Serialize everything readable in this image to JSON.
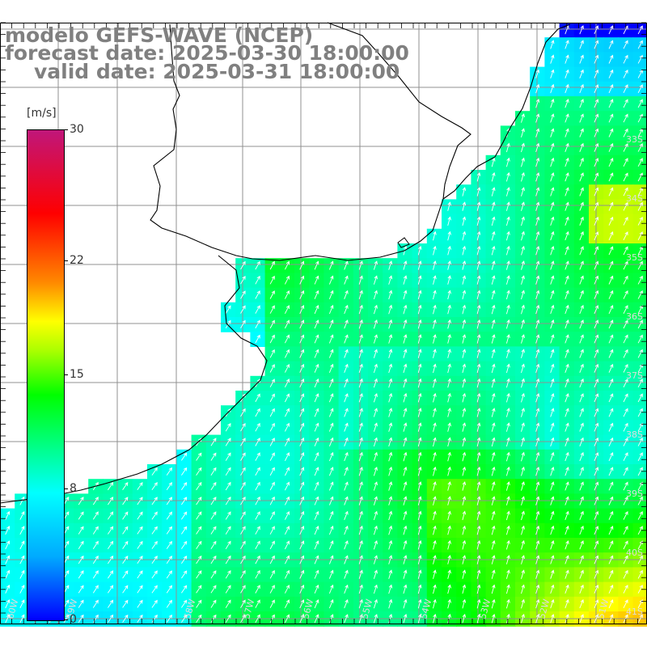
{
  "title": {
    "model": "modelo GEFS-WAVE (NCEP)",
    "forecast": "forecast date: 2025-03-30 18:00:00",
    "valid": "valid date: 2025-03-31 18:00:00"
  },
  "colorbar": {
    "unit": "[m/s]",
    "min": 0,
    "max": 30,
    "ticks": [
      {
        "value": 30,
        "label": "30"
      },
      {
        "value": 22,
        "label": "22"
      },
      {
        "value": 15,
        "label": "15"
      },
      {
        "value": 8,
        "label": "8"
      },
      {
        "value": 0,
        "label": "0"
      }
    ]
  },
  "lat_labels": [
    "33S",
    "34S",
    "35S",
    "36S",
    "37S",
    "38S",
    "39S",
    "40S",
    "41S"
  ],
  "lon_labels": [
    "60W",
    "59W",
    "58W",
    "57W",
    "56W",
    "55W",
    "54W",
    "53W",
    "52W",
    "51W"
  ],
  "colors": {
    "land": "#ffffff",
    "grid": "#909090",
    "coast": "#000000",
    "arrows": "#ffffff",
    "low_wind": "#1e90ff",
    "mid_wind": "#00ff44",
    "high_wind": "#ffff00"
  }
}
